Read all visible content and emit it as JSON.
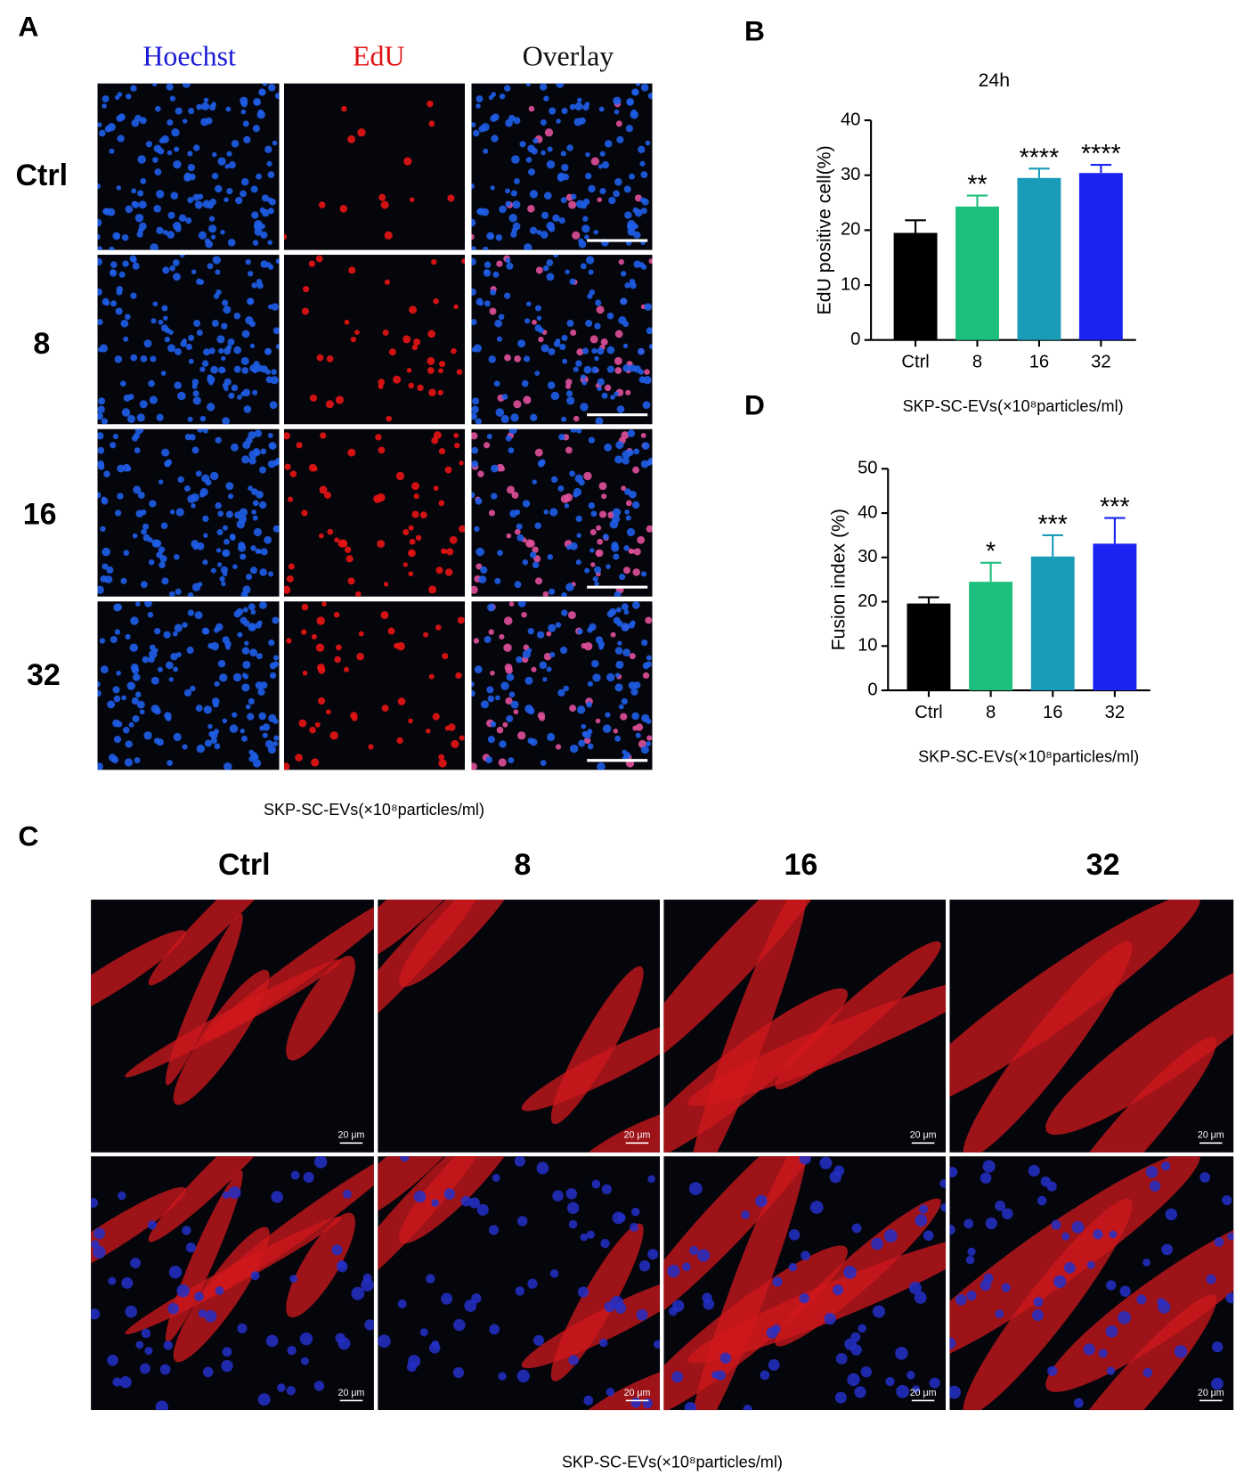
{
  "panels": {
    "a": {
      "label": "A",
      "columns": [
        "Hoechst",
        "EdU",
        "Overlay"
      ],
      "rows": [
        "Ctrl",
        "8",
        "16",
        "32"
      ],
      "caption": "SKP-SC-EVs(×10⁸particles/ml)"
    },
    "b": {
      "label": "B"
    },
    "c": {
      "label": "C",
      "columns": [
        "Ctrl",
        "8",
        "16",
        "32"
      ],
      "caption": "SKP-SC-EVs(×10⁸particles/ml)",
      "scale_bar_label": "20 μm"
    },
    "d": {
      "label": "D"
    }
  },
  "chart_data": [
    {
      "type": "bar",
      "title": "24h",
      "ylabel": "EdU positive cell(%)",
      "xlabel": "SKP-SC-EVs(×10⁸particles/ml)",
      "categories": [
        "Ctrl",
        "8",
        "16",
        "32"
      ],
      "values": [
        19.5,
        24.3,
        29.5,
        30.4
      ],
      "errors": [
        2.3,
        2.0,
        1.7,
        1.5
      ],
      "significance": [
        null,
        "**",
        "****",
        "****"
      ],
      "colors": [
        "#000000",
        "#1dbf7c",
        "#1a9bb8",
        "#1a24f2"
      ],
      "ylim": [
        0,
        40
      ],
      "yticks": [
        0,
        10,
        20,
        30,
        40
      ]
    },
    {
      "type": "bar",
      "ylabel": "Fusion index (%)",
      "xlabel": "SKP-SC-EVs(×10⁸particles/ml)",
      "categories": [
        "Ctrl",
        "8",
        "16",
        "32"
      ],
      "values": [
        19.6,
        24.5,
        30.2,
        33.1
      ],
      "errors": [
        1.4,
        4.3,
        4.8,
        5.8
      ],
      "significance": [
        null,
        "*",
        "***",
        "***"
      ],
      "colors": [
        "#000000",
        "#1dbf7c",
        "#1a9bb8",
        "#1a24f2"
      ],
      "ylim": [
        0,
        50
      ],
      "yticks": [
        0,
        10,
        20,
        30,
        40,
        50
      ]
    }
  ]
}
